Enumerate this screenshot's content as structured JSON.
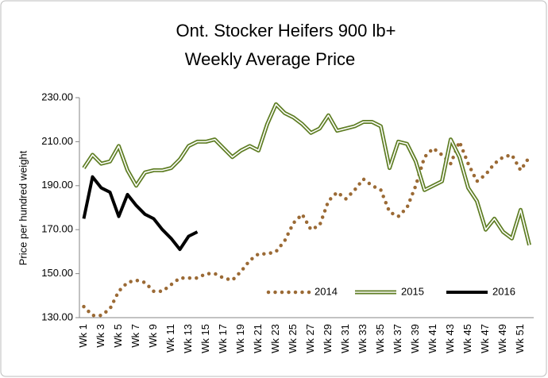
{
  "chart_data": {
    "type": "line",
    "title": "Ont. Stocker Heifers 900 lb+",
    "subtitle": "Weekly Average Price",
    "y_label": "Price per hundred weight",
    "categories": [
      "Wk 1",
      null,
      "Wk 3",
      null,
      "Wk 5",
      null,
      "Wk 7",
      null,
      "Wk 9",
      null,
      "Wk 11",
      null,
      "Wk 13",
      null,
      "Wk 15",
      null,
      "Wk 17",
      null,
      "Wk 19",
      null,
      "Wk 21",
      null,
      "Wk 23",
      null,
      "Wk 25",
      null,
      "Wk 27",
      null,
      "Wk 29",
      null,
      "Wk 31",
      null,
      "Wk 33",
      null,
      "Wk 35",
      null,
      "Wk 37",
      null,
      "Wk 39",
      null,
      "Wk 41",
      null,
      "Wk 43",
      null,
      "Wk 45",
      null,
      "Wk 47",
      null,
      "Wk 49",
      null,
      "Wk 51",
      null
    ],
    "ylim": [
      130,
      230
    ],
    "yticks": [
      {
        "value": 130,
        "label": "130.00"
      },
      {
        "value": 150,
        "label": "150.00"
      },
      {
        "value": 170,
        "label": "170.00"
      },
      {
        "value": 190,
        "label": "190.00"
      },
      {
        "value": 210,
        "label": "210.00"
      },
      {
        "value": 230,
        "label": "230.00"
      }
    ],
    "grid": false,
    "legend": "bottom-right",
    "series": [
      {
        "name": "2014",
        "color": "#9b6a35",
        "style": "dotted",
        "values": [
          135,
          131,
          131,
          134,
          142,
          146,
          147,
          146,
          142,
          142,
          145,
          148,
          148,
          148,
          150,
          150,
          148,
          147,
          151,
          156,
          159,
          159,
          160,
          165,
          173,
          177,
          170,
          172,
          183,
          187,
          184,
          188,
          193,
          190,
          188,
          178,
          176,
          180,
          190,
          203,
          207,
          204,
          200,
          210,
          200,
          192,
          195,
          200,
          203,
          204,
          197,
          203
        ]
      },
      {
        "name": "2015",
        "color": "#5e7d23",
        "style": "double",
        "values": [
          198,
          204,
          200,
          201,
          208,
          197,
          190,
          196,
          197,
          197,
          198,
          202,
          208,
          210,
          210,
          211,
          207,
          203,
          206,
          208,
          206,
          218,
          227,
          223,
          221,
          218,
          214,
          216,
          222,
          215,
          216,
          217,
          219,
          219,
          217,
          198,
          210,
          209,
          201,
          188,
          190,
          192,
          211,
          203,
          189,
          183,
          170,
          175,
          169,
          166,
          179,
          163
        ]
      },
      {
        "name": "2016",
        "color": "#000000",
        "style": "solid",
        "values": [
          175,
          194,
          189,
          187,
          176,
          186,
          181,
          177,
          175,
          170,
          166,
          161,
          167,
          169,
          null,
          null,
          null,
          null,
          null,
          null,
          null,
          null,
          null,
          null,
          null,
          null,
          null,
          null,
          null,
          null,
          null,
          null,
          null,
          null,
          null,
          null,
          null,
          null,
          null,
          null,
          null,
          null,
          null,
          null,
          null,
          null,
          null,
          null,
          null,
          null,
          null,
          null
        ]
      }
    ]
  }
}
